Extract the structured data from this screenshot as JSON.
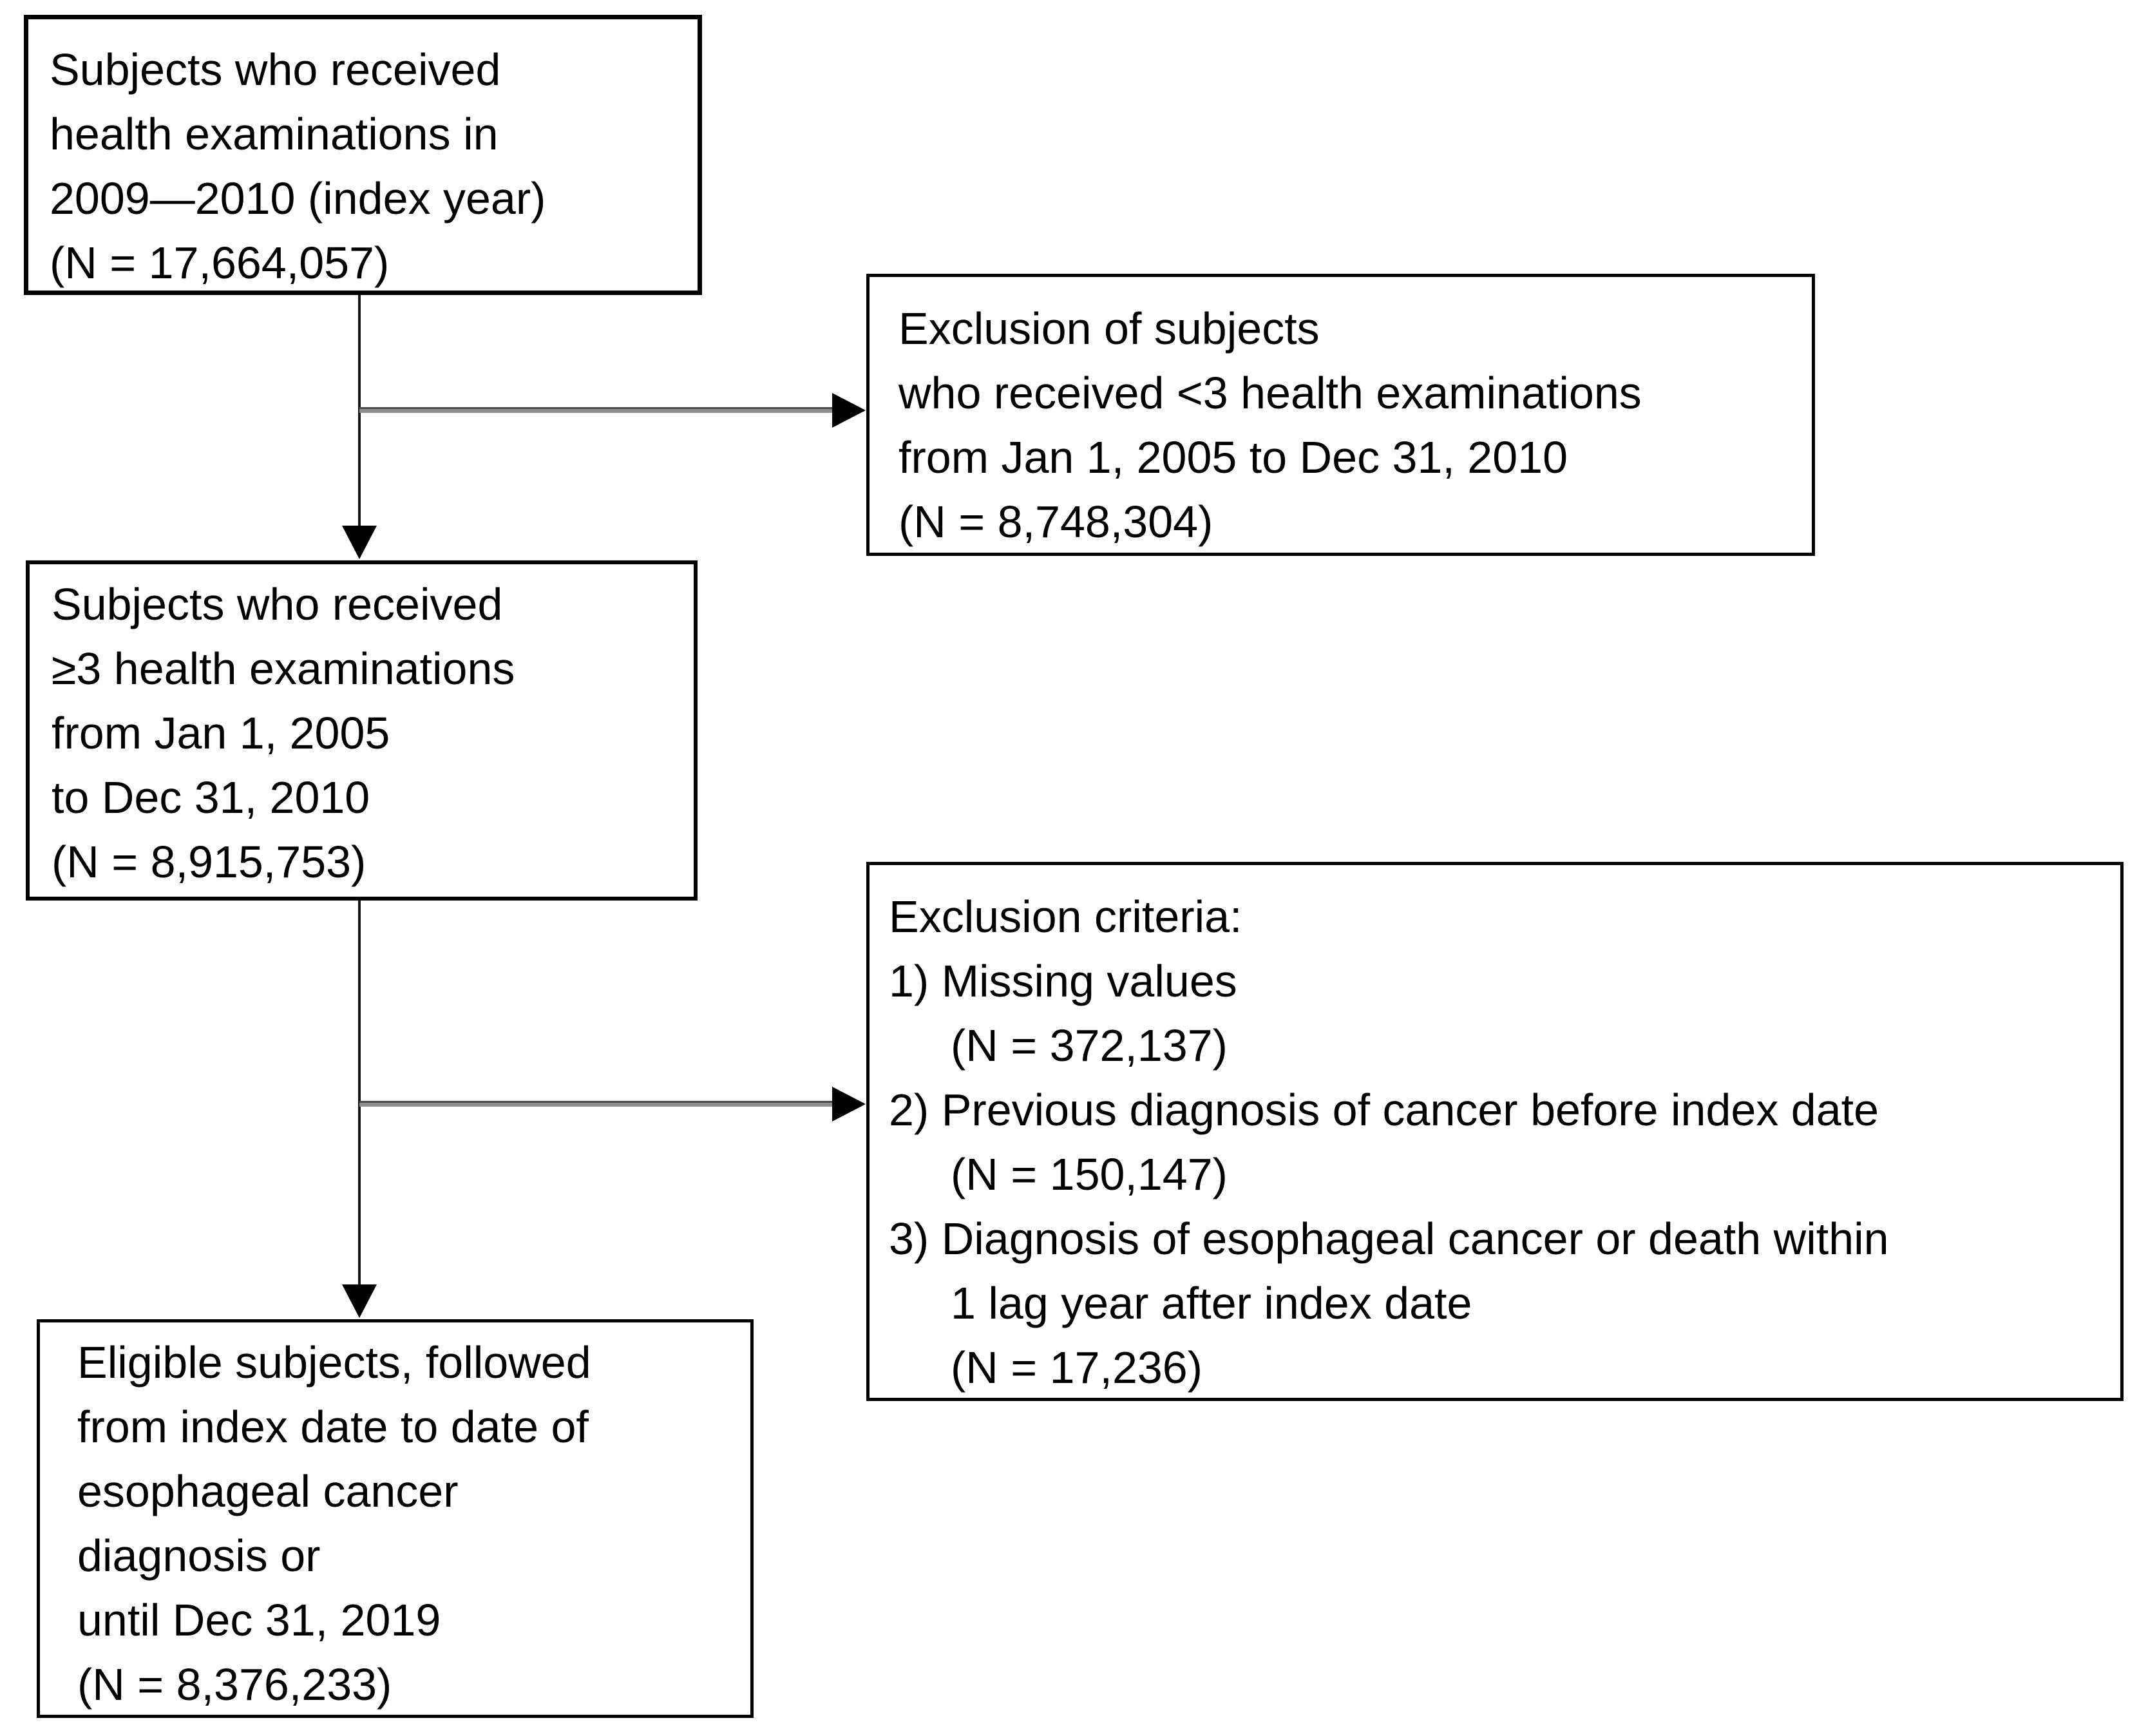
{
  "diagram": {
    "type": "study-flowchart",
    "colors": {
      "background": "#ffffff",
      "box_border": "#000000",
      "text": "#000000",
      "connector": "#4b4b4b"
    },
    "boxes": {
      "initial": {
        "lines": [
          "Subjects who received",
          "health examinations in",
          "2009—2010 (index year)",
          "(N = 17,664,057)"
        ],
        "n": "17,664,057"
      },
      "exclusion1": {
        "lines": [
          "Exclusion of subjects",
          "who received <3 health examinations",
          "from Jan 1, 2005 to Dec 31, 2010",
          "(N = 8,748,304)"
        ],
        "n": "8,748,304"
      },
      "cohort": {
        "lines": [
          "Subjects who received",
          "≥3 health examinations",
          "from Jan 1, 2005",
          "to Dec 31, 2010",
          "(N = 8,915,753)"
        ],
        "n": "8,915,753"
      },
      "exclusion2": {
        "lines": [
          "Exclusion criteria:",
          "1) Missing values",
          "(N = 372,137)",
          "2) Previous diagnosis of cancer before index date",
          "(N = 150,147)",
          "3) Diagnosis of esophageal cancer or death within",
          "1 lag year after index date",
          "(N = 17,236)"
        ],
        "n_values": [
          "372,137",
          "150,147",
          "17,236"
        ]
      },
      "eligible": {
        "lines": [
          "Eligible subjects, followed",
          "from index date to date of",
          "esophageal cancer",
          "diagnosis or",
          "until Dec 31, 2019",
          "(N = 8,376,233)"
        ],
        "n": "8,376,233"
      }
    }
  }
}
